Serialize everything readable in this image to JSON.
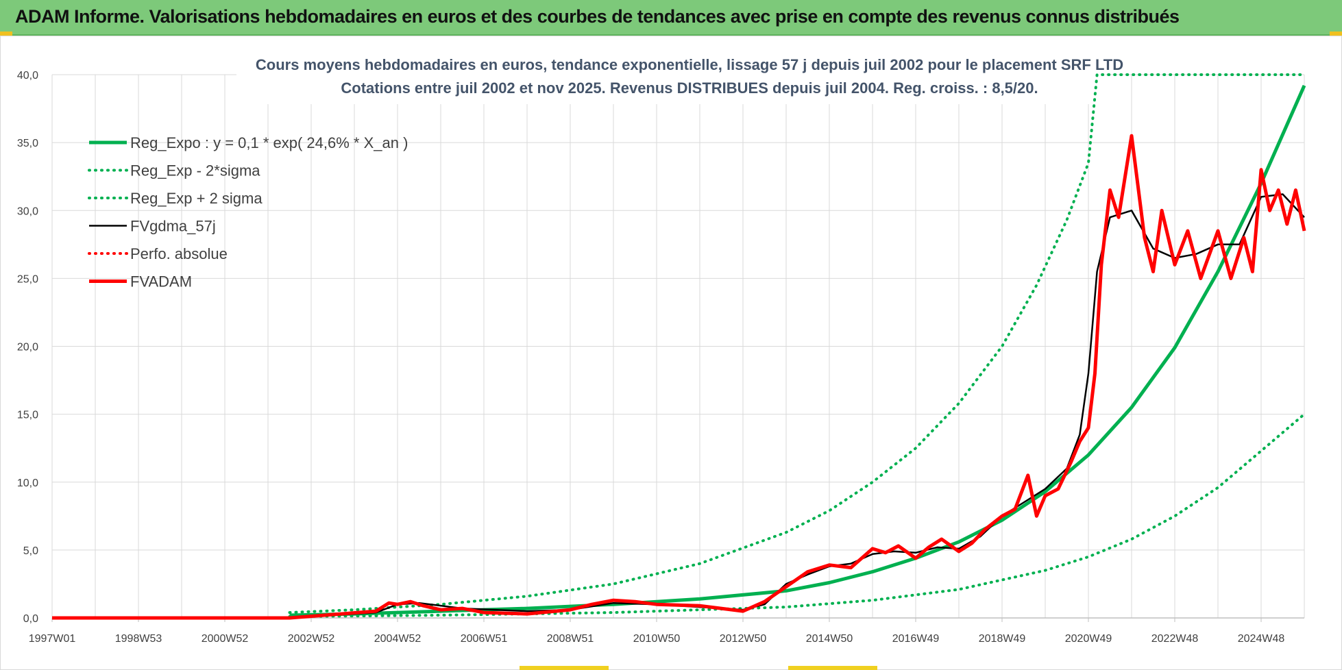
{
  "header": {
    "title": "ADAM Informe. Valorisations hebdomadaires en euros et des courbes de tendances avec prise en compte des revenus connus distribués"
  },
  "colors": {
    "banner": "#7dc97a",
    "green": "#00b050",
    "red": "#ff0000",
    "black": "#000000",
    "grid": "#d9d9d9",
    "title_text": "#44546a"
  },
  "chart_data": {
    "type": "line",
    "title_lines": [
      "Cours moyens hebdomadaires en euros, tendance exponentielle, lissage 57 j depuis juil 2002 pour le placement SRF LTD",
      "Cotations entre juil 2002 et nov 2025. Revenus DISTRIBUES depuis juil 2004. Reg. croiss. : 8,5/20."
    ],
    "xlabel": "",
    "ylabel": "",
    "ylim": [
      0,
      40
    ],
    "y_ticks": [
      "0,0",
      "5,0",
      "10,0",
      "15,0",
      "20,0",
      "25,0",
      "30,0",
      "35,0",
      "40,0"
    ],
    "x_ticks": [
      "1997W01",
      "1998W53",
      "2000W52",
      "2002W52",
      "2004W52",
      "2006W51",
      "2008W51",
      "2010W50",
      "2012W50",
      "2014W50",
      "2016W49",
      "2018W49",
      "2020W49",
      "2022W48",
      "2024W48"
    ],
    "xlim": [
      1997.0,
      2026.0
    ],
    "grid": true,
    "legend_position": "top-left",
    "legend": [
      {
        "label": "Reg_Expo : y = 0,1 * exp( 24,6% *  X_an )",
        "color": "#00b050",
        "style": "solid-thick"
      },
      {
        "label": "Reg_Exp - 2*sigma",
        "color": "#00b050",
        "style": "dotted"
      },
      {
        "label": "Reg_Exp + 2 sigma",
        "color": "#00b050",
        "style": "dotted"
      },
      {
        "label": "FVgdma_57j",
        "color": "#000000",
        "style": "solid"
      },
      {
        "label": "Perfo. absolue",
        "color": "#ff0000",
        "style": "dotted"
      },
      {
        "label": "FVADAM",
        "color": "#ff0000",
        "style": "solid-thick"
      }
    ],
    "series": [
      {
        "name": "Reg_Expo : y = 0,1 * exp( 24,6% *  X_an )",
        "x": [
          2002.5,
          2004.0,
          2006.0,
          2008.0,
          2010.0,
          2012.0,
          2014.0,
          2015.0,
          2016.0,
          2017.0,
          2018.0,
          2019.0,
          2020.0,
          2021.0,
          2022.0,
          2023.0,
          2024.0,
          2025.0,
          2026.0
        ],
        "values": [
          0.2,
          0.3,
          0.5,
          0.7,
          1.0,
          1.4,
          2.0,
          2.6,
          3.4,
          4.4,
          5.6,
          7.2,
          9.3,
          12.0,
          15.5,
          19.9,
          25.5,
          32.0,
          39.2
        ]
      },
      {
        "name": "Reg_Exp - 2*sigma",
        "x": [
          2002.5,
          2006.0,
          2010.0,
          2012.0,
          2014.0,
          2016.0,
          2018.0,
          2020.0,
          2021.0,
          2022.0,
          2023.0,
          2024.0,
          2025.0,
          2026.0
        ],
        "values": [
          0.1,
          0.2,
          0.4,
          0.6,
          0.8,
          1.3,
          2.1,
          3.5,
          4.5,
          5.8,
          7.5,
          9.6,
          12.3,
          15.0
        ]
      },
      {
        "name": "Reg_Exp + 2 sigma",
        "x": [
          2002.5,
          2004.0,
          2006.0,
          2008.0,
          2010.0,
          2012.0,
          2014.0,
          2015.0,
          2016.0,
          2017.0,
          2018.0,
          2019.0,
          2019.8,
          2020.5,
          2021.0,
          2021.2,
          2026.0
        ],
        "values": [
          0.4,
          0.6,
          1.0,
          1.6,
          2.5,
          4.0,
          6.3,
          7.9,
          10.0,
          12.5,
          15.8,
          20.0,
          24.5,
          29.3,
          33.5,
          40.0,
          40.0
        ]
      },
      {
        "name": "FVgdma_57j",
        "x": [
          1997.0,
          2002.5,
          2004.5,
          2005.0,
          2005.5,
          2006.5,
          2008.0,
          2009.0,
          2010.0,
          2011.0,
          2012.0,
          2013.0,
          2013.5,
          2014.0,
          2014.5,
          2015.0,
          2015.5,
          2016.0,
          2016.5,
          2017.0,
          2017.5,
          2018.0,
          2018.5,
          2019.0,
          2019.5,
          2020.0,
          2020.5,
          2020.8,
          2021.0,
          2021.2,
          2021.5,
          2022.0,
          2022.5,
          2023.0,
          2023.5,
          2024.0,
          2024.5,
          2025.0,
          2025.5,
          2026.0
        ],
        "values": [
          0.0,
          0.0,
          0.4,
          1.0,
          1.1,
          0.7,
          0.5,
          0.6,
          1.1,
          1.0,
          0.8,
          0.6,
          1.0,
          2.5,
          3.2,
          3.8,
          4.0,
          4.7,
          4.9,
          4.8,
          5.2,
          5.1,
          6.0,
          7.5,
          8.5,
          9.5,
          11.0,
          13.5,
          18.0,
          25.5,
          29.5,
          30.0,
          27.2,
          26.5,
          26.8,
          27.5,
          27.5,
          31.0,
          31.2,
          29.5
        ]
      },
      {
        "name": "FVADAM",
        "x": [
          1997.0,
          2002.5,
          2004.5,
          2004.8,
          2005.0,
          2005.3,
          2005.6,
          2006.0,
          2006.5,
          2007.0,
          2008.0,
          2009.0,
          2009.5,
          2010.0,
          2010.5,
          2011.0,
          2012.0,
          2013.0,
          2013.5,
          2014.0,
          2014.5,
          2015.0,
          2015.5,
          2016.0,
          2016.3,
          2016.6,
          2017.0,
          2017.3,
          2017.6,
          2018.0,
          2018.3,
          2018.6,
          2019.0,
          2019.3,
          2019.6,
          2019.8,
          2020.0,
          2020.3,
          2020.6,
          2020.8,
          2021.0,
          2021.15,
          2021.3,
          2021.5,
          2021.7,
          2022.0,
          2022.3,
          2022.5,
          2022.7,
          2023.0,
          2023.3,
          2023.6,
          2024.0,
          2024.3,
          2024.6,
          2024.8,
          2025.0,
          2025.2,
          2025.4,
          2025.6,
          2025.8,
          2026.0
        ],
        "values": [
          0.0,
          0.0,
          0.5,
          1.1,
          1.0,
          1.2,
          0.9,
          0.6,
          0.7,
          0.4,
          0.3,
          0.6,
          1.0,
          1.3,
          1.2,
          1.0,
          0.9,
          0.5,
          1.2,
          2.3,
          3.4,
          3.9,
          3.7,
          5.1,
          4.8,
          5.3,
          4.4,
          5.2,
          5.8,
          4.9,
          5.5,
          6.5,
          7.5,
          8.0,
          10.5,
          7.5,
          9.0,
          9.5,
          11.5,
          13.0,
          14.0,
          18.0,
          26.0,
          31.5,
          29.5,
          35.5,
          28.0,
          25.5,
          30.0,
          26.0,
          28.5,
          25.0,
          28.5,
          25.0,
          28.0,
          25.5,
          33.0,
          30.0,
          31.5,
          29.0,
          31.5,
          28.5
        ]
      }
    ]
  }
}
